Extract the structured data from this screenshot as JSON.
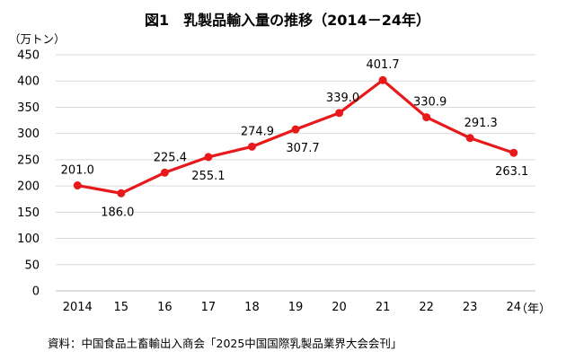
{
  "chart_data": {
    "type": "line",
    "title": "図1　乳製品輸入量の推移（2014－24年）",
    "ylabel": "（万トン）",
    "xlabel": "（年）",
    "source": "資料：中国食品土畜輸出入商会「2025中国国際乳製品業界大会会刊」",
    "categories": [
      "2014",
      "15",
      "16",
      "17",
      "18",
      "19",
      "20",
      "21",
      "22",
      "23",
      "24"
    ],
    "ylim": [
      0,
      450
    ],
    "yticks": [
      0,
      50,
      100,
      150,
      200,
      250,
      300,
      350,
      400,
      450
    ],
    "grid": true,
    "legend": "none",
    "line_color": "#e8191a",
    "series": [
      {
        "values": [
          201.0,
          186.0,
          225.4,
          255.1,
          274.9,
          307.7,
          339.0,
          401.7,
          330.9,
          291.3,
          263.1
        ],
        "labels": [
          "201.0",
          "186.0",
          "225.4",
          "255.1",
          "274.9",
          "307.7",
          "339.0",
          "401.7",
          "330.9",
          "291.3",
          "263.1"
        ]
      }
    ]
  }
}
